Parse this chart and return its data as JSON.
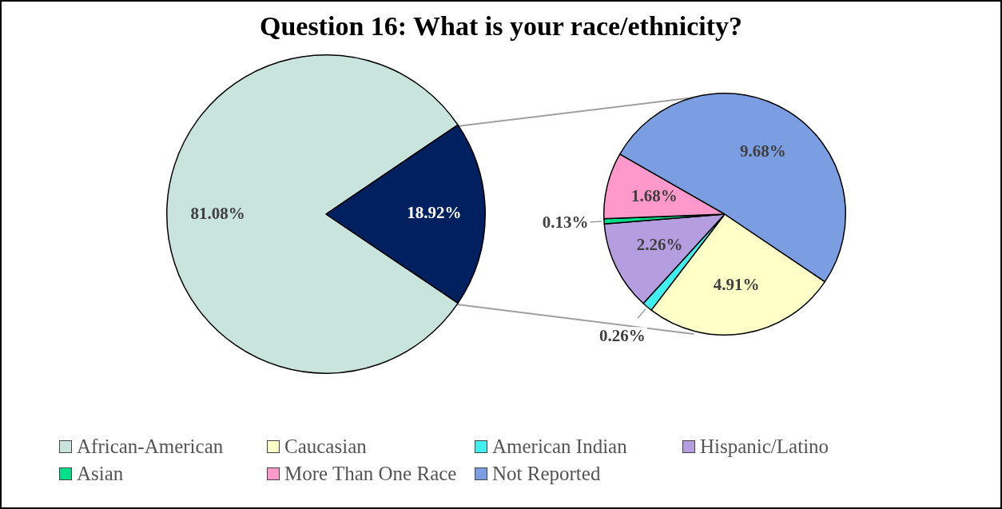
{
  "chart_data": [
    {
      "type": "pie",
      "title": "Question 16: What is your race/ethnicity?",
      "categories": [
        "African-American",
        null
      ],
      "values": [
        81.08,
        18.92
      ],
      "colors": [
        "#c8e4dc",
        "#002060"
      ],
      "value_labels": [
        "81.08%",
        "18.92%"
      ],
      "legend": "bottom"
    },
    {
      "type": "pie",
      "categories": [
        "Caucasian",
        "American Indian",
        "Hispanic/Latino",
        "Asian",
        "More Than One Race",
        "Not Reported"
      ],
      "values": [
        4.91,
        0.26,
        2.26,
        0.13,
        1.68,
        9.68
      ],
      "colors": [
        "#ffffc8",
        "#40f0f0",
        "#b49ee0",
        "#00e08a",
        "#ff99cc",
        "#7b9ee3"
      ],
      "value_labels": [
        "4.91%",
        "0.26%",
        "2.26%",
        "0.13%",
        "1.68%",
        "9.68%"
      ],
      "legend": "bottom"
    }
  ]
}
